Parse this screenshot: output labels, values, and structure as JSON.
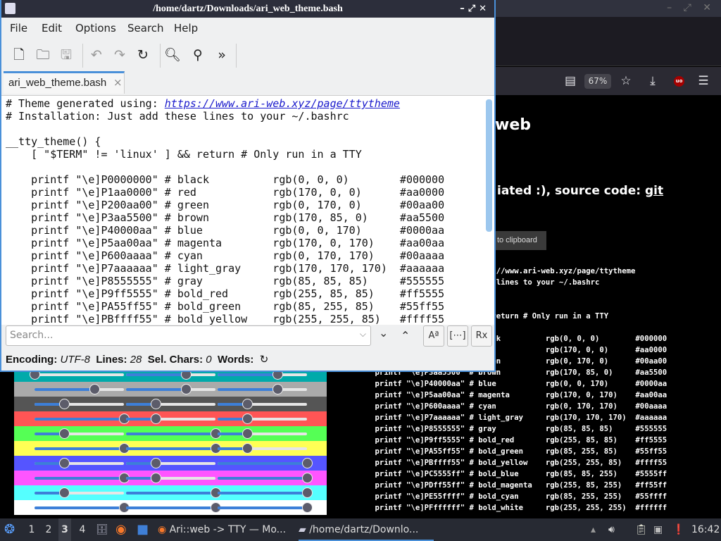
{
  "editor": {
    "title": "/home/dartz/Downloads/ari_web_theme.bash",
    "menu": [
      "File",
      "Edit",
      "Options",
      "Search",
      "Help"
    ],
    "tab": "ari_web_theme.bash",
    "search_placeholder": "Search...",
    "status": {
      "encoding_label": "Encoding:",
      "encoding": "UTF-8",
      "lines_label": "Lines:",
      "lines": "28",
      "sel_label": "Sel. Chars:",
      "sel": "0",
      "words_label": "Words:"
    }
  },
  "code": {
    "first_prefix": "# Theme generated using: ",
    "url": "https://www.ari-web.xyz/page/ttytheme",
    "lines": [
      "# Installation: Just add these lines to your ~/.bashrc",
      "",
      "__tty_theme() {",
      "    [ \"$TERM\" != 'linux' ] && return # Only run in a TTY",
      "",
      "    printf \"\\e]P0000000\" # black          rgb(0, 0, 0)        #000000",
      "    printf \"\\e]P1aa0000\" # red            rgb(170, 0, 0)      #aa0000",
      "    printf \"\\e]P200aa00\" # green          rgb(0, 170, 0)      #00aa00",
      "    printf \"\\e]P3aa5500\" # brown          rgb(170, 85, 0)     #aa5500",
      "    printf \"\\e]P40000aa\" # blue           rgb(0, 0, 170)      #0000aa",
      "    printf \"\\e]P5aa00aa\" # magenta        rgb(170, 0, 170)    #aa00aa",
      "    printf \"\\e]P600aaaa\" # cyan           rgb(0, 170, 170)    #00aaaa",
      "    printf \"\\e]P7aaaaaa\" # light_gray     rgb(170, 170, 170)  #aaaaaa",
      "    printf \"\\e]P8555555\" # gray           rgb(85, 85, 85)     #555555",
      "    printf \"\\e]P9ff5555\" # bold_red       rgb(255, 85, 85)    #ff5555",
      "    printf \"\\e]PA55ff55\" # bold_green     rgb(85, 255, 85)    #55ff55",
      "    printf \"\\e]PBffff55\" # bold_yellow    rgb(255, 255, 85)   #ffff55",
      "    printf \"\\e]PC5555ff\" # bold_blue      rgb(85, 85, 255)    #5555ff",
      "    printf \"\\e]PDff55ff\" # bold_magenta   rgb(255, 85, 255)   #ff55ff",
      "    printf \"\\e]PE55ffff\" # bold_cyan      rgb(85, 255, 255)   #55ffff",
      "    printf \"\\e]PFffffff\" # bold_white     rgb(255, 255, 255)  #ffffff"
    ]
  },
  "browser": {
    "zoom": "67%",
    "heading_visible": "web",
    "subheading_visible": "iated :), source code: ",
    "subheading_link": "git",
    "copy_button_visible": "to clipboard",
    "ublock_badge": "uo"
  },
  "slider_palette": [
    "aa00aa",
    "00aaaa",
    "aaaaaa",
    "555555",
    "ff5555",
    "55ff55",
    "ffff55",
    "5555ff",
    "ff55ff",
    "55ffff",
    "ffffff"
  ],
  "taskbar": {
    "workspaces": [
      "1",
      "2",
      "3",
      "4"
    ],
    "active_workspace": "3",
    "tasks": [
      "Ari::web -> TTY — Mo...",
      "/home/dartz/Downlo..."
    ],
    "clock": "16:42"
  },
  "colors": {
    "accent": "#4a90d9",
    "link": "#1a1acc",
    "slider_fill": "#3d7fd8"
  }
}
